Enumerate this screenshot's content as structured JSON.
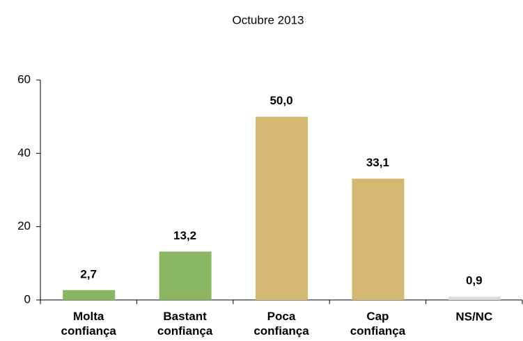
{
  "chart_data": {
    "type": "bar",
    "title": "Octubre 2013",
    "categories": [
      "Molta confiança",
      "Bastant confiança",
      "Poca confiança",
      "Cap confiança",
      "NS/NC"
    ],
    "values": [
      2.7,
      13.2,
      50.0,
      33.1,
      0.9
    ],
    "value_labels": [
      "2,7",
      "13,2",
      "50,0",
      "33,1",
      "0,9"
    ],
    "colors": [
      "#8bb661",
      "#8bb661",
      "#d4b872",
      "#d4b872",
      "#dcdcdc"
    ],
    "ylim": [
      0,
      60
    ],
    "yticks": [
      0,
      20,
      40,
      60
    ],
    "grid": false
  }
}
